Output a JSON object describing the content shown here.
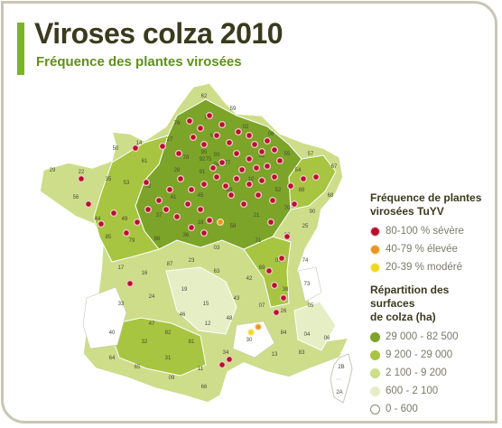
{
  "title": "Viroses colza 2010",
  "subtitle": "Fréquence des plantes virosées",
  "legend": {
    "frequency_title_line1": "Fréquence de plantes",
    "frequency_title_line2": "virosées TuYV",
    "frequency_items": [
      {
        "label": "80-100 % sévère",
        "color": "#b8102c"
      },
      {
        "label": "40-79 % élevée",
        "color": "#e8961e"
      },
      {
        "label": "20-39 % modéré",
        "color": "#f2d81c"
      }
    ],
    "surface_title_line1": "Répartition des surfaces",
    "surface_title_line2": "de colza (ha)",
    "surface_items": [
      {
        "label": "29 000 - 82 500",
        "color": "#7ba428"
      },
      {
        "label": "9 200 - 29 000",
        "color": "#a7c540"
      },
      {
        "label": "2 100 - 9 200",
        "color": "#cddd8a"
      },
      {
        "label": "600 - 2 100",
        "color": "#e6eec6"
      },
      {
        "label": "0 - 600",
        "color": "#ffffff"
      }
    ]
  },
  "map": {
    "department_numbers": [
      "62",
      "59",
      "80",
      "02",
      "08",
      "76",
      "60",
      "95",
      "93",
      "75",
      "94",
      "92",
      "78",
      "91",
      "77",
      "51",
      "55",
      "54",
      "57",
      "67",
      "88",
      "68",
      "27",
      "28",
      "45",
      "10",
      "52",
      "70",
      "90",
      "25",
      "39",
      "21",
      "89",
      "58",
      "71",
      "01",
      "74",
      "73",
      "38",
      "69",
      "42",
      "03",
      "18",
      "41",
      "36",
      "37",
      "72",
      "61",
      "53",
      "35",
      "22",
      "29",
      "56",
      "44",
      "49",
      "85",
      "79",
      "86",
      "17",
      "16",
      "87",
      "23",
      "19",
      "15",
      "63",
      "43",
      "07",
      "26",
      "05",
      "04",
      "06",
      "83",
      "84",
      "13",
      "30",
      "48",
      "12",
      "46",
      "24",
      "33",
      "47",
      "40",
      "32",
      "82",
      "81",
      "64",
      "65",
      "31",
      "09",
      "11",
      "34",
      "66",
      "2A",
      "2B",
      "14",
      "50"
    ]
  }
}
